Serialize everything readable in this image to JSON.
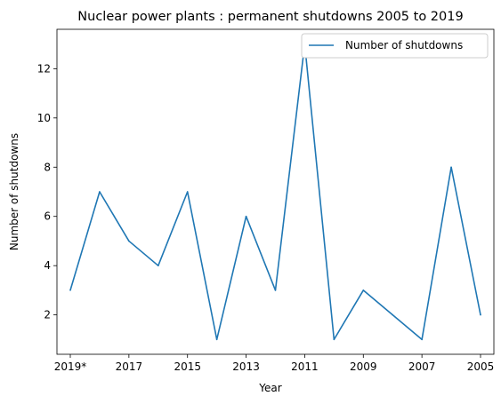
{
  "chart_data": {
    "type": "line",
    "title": "Nuclear power plants : permanent shutdowns 2005 to 2019",
    "xlabel": "Year",
    "ylabel": "Number of shutdowns",
    "x": [
      "2019*",
      "2018",
      "2017",
      "2016",
      "2015",
      "2014",
      "2013",
      "2012",
      "2011",
      "2010",
      "2009",
      "2008",
      "2007",
      "2006",
      "2005"
    ],
    "x_tick_labels": [
      "2019*",
      "2017",
      "2015",
      "2013",
      "2011",
      "2009",
      "2007",
      "2005"
    ],
    "series": [
      {
        "name": "Number of shutdowns",
        "values": [
          3,
          7,
          5,
          4,
          7,
          1,
          6,
          3,
          13,
          1,
          3,
          2,
          1,
          8,
          2
        ],
        "color": "#1f77b4"
      }
    ],
    "ylim": [
      0.4,
      13.6
    ],
    "y_ticks": [
      2,
      4,
      6,
      8,
      10,
      12
    ],
    "legend_position": "upper right",
    "grid": false
  }
}
